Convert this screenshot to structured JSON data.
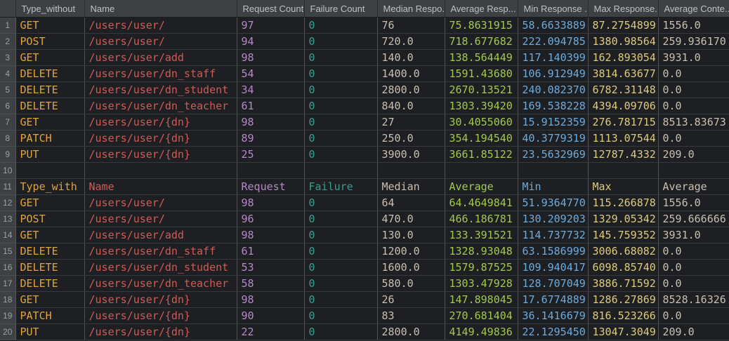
{
  "table": {
    "corner_label": "",
    "headers": [
      "Type_without",
      "Name",
      "Request Count",
      "Failure Count",
      "Median Respo...",
      "Average Resp...",
      "Min Response ...",
      "Max Response...",
      "Average Conte..."
    ],
    "column_colors": [
      "#e2a33d",
      "#cf5b56",
      "#b48ac8",
      "#35a08e",
      "#c9bfb2",
      "#a2c94e",
      "#6cabdd",
      "#ddcb7d",
      "#c9bfb2"
    ],
    "rows": [
      {
        "num": "1",
        "cells": [
          "GET",
          "/users/user/",
          "97",
          "0",
          "76",
          "75.8631915",
          "58.6633889",
          "87.2754899",
          "1556.0"
        ]
      },
      {
        "num": "2",
        "cells": [
          "POST",
          "/users/user/",
          "94",
          "0",
          "720.0",
          "718.677682",
          "222.094785",
          "1380.98564",
          "259.936170"
        ]
      },
      {
        "num": "3",
        "cells": [
          "GET",
          "/users/user/add",
          "98",
          "0",
          "140.0",
          "138.564449",
          "117.140399",
          "162.893054",
          "3931.0"
        ]
      },
      {
        "num": "4",
        "cells": [
          "DELETE",
          "/users/user/dn_staff",
          "54",
          "0",
          "1400.0",
          "1591.43680",
          "106.912949",
          "3814.63677",
          "0.0"
        ]
      },
      {
        "num": "5",
        "cells": [
          "DELETE",
          "/users/user/dn_student",
          "34",
          "0",
          "2800.0",
          "2670.13521",
          "240.082370",
          "6782.31148",
          "0.0"
        ]
      },
      {
        "num": "6",
        "cells": [
          "DELETE",
          "/users/user/dn_teacher",
          "61",
          "0",
          "840.0",
          "1303.39420",
          "169.538228",
          "4394.09706",
          "0.0"
        ]
      },
      {
        "num": "7",
        "cells": [
          "GET",
          "/users/user/{dn}",
          "98",
          "0",
          "27",
          "30.4055060",
          "15.9152359",
          "276.781715",
          "8513.83673"
        ]
      },
      {
        "num": "8",
        "cells": [
          "PATCH",
          "/users/user/{dn}",
          "89",
          "0",
          "250.0",
          "354.194540",
          "40.3779319",
          "1113.07544",
          "0.0"
        ]
      },
      {
        "num": "9",
        "cells": [
          "PUT",
          "/users/user/{dn}",
          "25",
          "0",
          "3900.0",
          "3661.85122",
          "23.5632969",
          "12787.4332",
          "209.0"
        ]
      },
      {
        "num": "10",
        "cells": [
          "",
          "",
          "",
          "",
          "",
          "",
          "",
          "",
          ""
        ]
      },
      {
        "num": "11",
        "cells": [
          "Type_with",
          "Name",
          "Request",
          "Failure",
          "Median",
          "Average",
          "Min",
          "Max",
          "Average"
        ]
      },
      {
        "num": "12",
        "cells": [
          "GET",
          "/users/user/",
          "98",
          "0",
          "64",
          "64.4649841",
          "51.9364770",
          "115.266878",
          "1556.0"
        ]
      },
      {
        "num": "13",
        "cells": [
          "POST",
          "/users/user/",
          "96",
          "0",
          "470.0",
          "466.186781",
          "130.209203",
          "1329.05342",
          "259.666666"
        ]
      },
      {
        "num": "14",
        "cells": [
          "GET",
          "/users/user/add",
          "98",
          "0",
          "130.0",
          "133.391521",
          "114.737732",
          "145.759352",
          "3931.0"
        ]
      },
      {
        "num": "15",
        "cells": [
          "DELETE",
          "/users/user/dn_staff",
          "61",
          "0",
          "1200.0",
          "1328.93048",
          "63.1586999",
          "3006.68082",
          "0.0"
        ]
      },
      {
        "num": "16",
        "cells": [
          "DELETE",
          "/users/user/dn_student",
          "53",
          "0",
          "1600.0",
          "1579.87525",
          "109.940417",
          "6098.85740",
          "0.0"
        ]
      },
      {
        "num": "17",
        "cells": [
          "DELETE",
          "/users/user/dn_teacher",
          "58",
          "0",
          "580.0",
          "1303.47928",
          "128.707049",
          "3886.71592",
          "0.0"
        ]
      },
      {
        "num": "18",
        "cells": [
          "GET",
          "/users/user/{dn}",
          "98",
          "0",
          "26",
          "147.898045",
          "17.6774889",
          "1286.27869",
          "8528.16326"
        ]
      },
      {
        "num": "19",
        "cells": [
          "PATCH",
          "/users/user/{dn}",
          "90",
          "0",
          "83",
          "270.681404",
          "36.1416679",
          "816.523266",
          "0.0"
        ]
      },
      {
        "num": "20",
        "cells": [
          "PUT",
          "/users/user/{dn}",
          "22",
          "0",
          "2800.0",
          "4149.49836",
          "22.1295450",
          "13047.3049",
          "209.0"
        ]
      }
    ],
    "column_names": [
      "type",
      "name",
      "request-count",
      "failure-count",
      "median-response",
      "average-response",
      "min-response",
      "max-response",
      "average-content"
    ]
  }
}
